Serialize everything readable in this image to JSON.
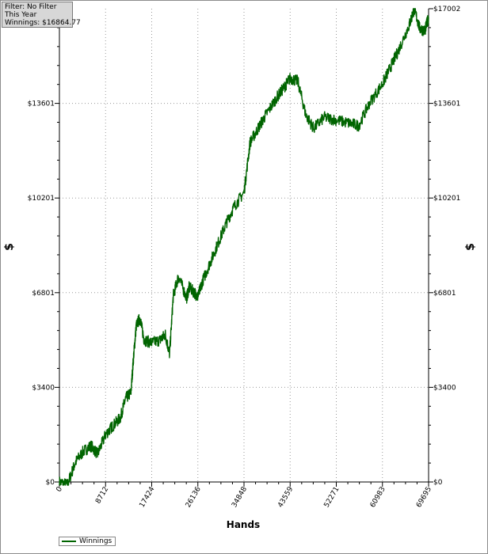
{
  "info": {
    "filter": "Filter: No Filter",
    "period": "This Year",
    "winnings": "Winnings: $16864.77"
  },
  "legend": {
    "label": "Winnings"
  },
  "colors": {
    "line": "#006400",
    "grid": "#9a9a9a"
  },
  "chart_data": {
    "type": "line",
    "xlabel": "Hands",
    "ylabel": "$",
    "xlim": [
      0,
      69695
    ],
    "ylim": [
      0,
      17002
    ],
    "x_ticks": [
      "0",
      "8712",
      "17424",
      "26136",
      "34848",
      "43559",
      "52271",
      "60983",
      "69695"
    ],
    "y_ticks": [
      "$0",
      "$3400",
      "$6801",
      "$10201",
      "$13601",
      "$17002"
    ],
    "series": [
      {
        "name": "Winnings",
        "x": [
          0,
          1500,
          3000,
          4500,
          6000,
          7200,
          8712,
          10000,
          11500,
          12500,
          13500,
          14000,
          14500,
          15200,
          16000,
          17424,
          19000,
          20000,
          20800,
          21500,
          22500,
          24000,
          24500,
          25500,
          26136,
          27000,
          28500,
          30000,
          31500,
          33000,
          34848,
          36000,
          37500,
          39000,
          41000,
          42500,
          43559,
          45000,
          46500,
          48000,
          50000,
          52271,
          54500,
          56500,
          58500,
          60983,
          62500,
          64000,
          66000,
          67000,
          68000,
          69000,
          69695
        ],
        "y": [
          0,
          -100,
          700,
          1100,
          1300,
          1000,
          1700,
          2000,
          2300,
          3000,
          3200,
          4500,
          5600,
          5900,
          5100,
          5000,
          5100,
          5300,
          4600,
          6700,
          7400,
          6600,
          7000,
          6800,
          6650,
          7200,
          7900,
          8600,
          9300,
          9900,
          10400,
          12200,
          12700,
          13200,
          13800,
          14200,
          14500,
          14400,
          13200,
          12700,
          13100,
          13000,
          12900,
          12800,
          13600,
          14300,
          14900,
          15500,
          16400,
          17000,
          16300,
          16200,
          16700
        ]
      }
    ]
  }
}
